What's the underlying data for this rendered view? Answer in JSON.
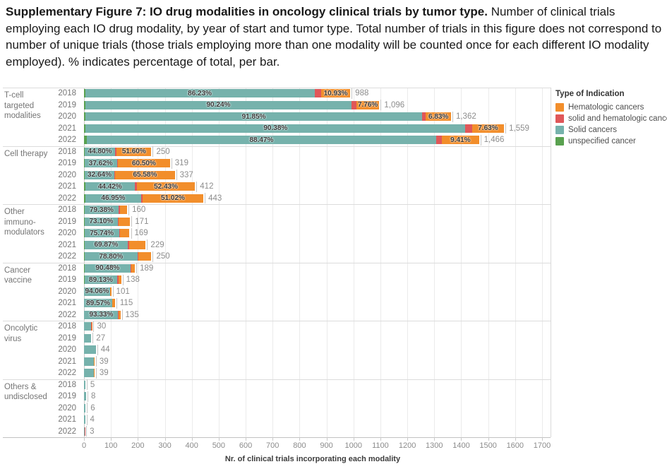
{
  "caption": {
    "bold": "Supplementary Figure 7: IO drug modalities in oncology clinical trials by tumor type.",
    "rest": " Number of clinical trials employing each IO drug modality, by year of start and tumor type. Total number of trials in this figure does not correspond to number of unique trials (those trials employing more than one modality will be counted once for each different IO modality employed). % indicates percentage of total, per bar."
  },
  "legend": {
    "title": "Type of Indication",
    "items": [
      {
        "label": "Hematologic cancers",
        "type": "hematologic",
        "color": "#f28e2b"
      },
      {
        "label": "solid and hematologic cancer",
        "type": "solid_hematologic",
        "color": "#e05759"
      },
      {
        "label": "Solid cancers",
        "type": "solid",
        "color": "#76b2ac"
      },
      {
        "label": "unspecified cancer",
        "type": "unspecified",
        "color": "#59a14f"
      }
    ]
  },
  "chart_data": {
    "type": "bar",
    "orientation": "horizontal",
    "stacked": true,
    "title": "IO drug modalities in oncology clinical trials by tumor type",
    "xlabel": "Nr. of clinical trials incorporating each modality",
    "xlim": [
      0,
      1700
    ],
    "xtick_step": 100,
    "grid": true,
    "legend_position": "right",
    "colors": {
      "hematologic": "#f28e2b",
      "solid_hematologic": "#e05759",
      "solid": "#76b2ac",
      "unspecified": "#59a14f"
    },
    "groups": [
      {
        "label": "T-cell targeted modalities",
        "rows": [
          {
            "year": "2018",
            "total": 988,
            "total_label": "988",
            "segments": [
              {
                "type": "unspecified",
                "pct": 0.4
              },
              {
                "type": "solid",
                "pct": 86.23,
                "label": "86.23%"
              },
              {
                "type": "solid_hematologic",
                "pct": 2.44
              },
              {
                "type": "hematologic",
                "pct": 10.93,
                "label": "10.93%"
              }
            ]
          },
          {
            "year": "2019",
            "total": 1096,
            "total_label": "1,096",
            "segments": [
              {
                "type": "unspecified",
                "pct": 0.4
              },
              {
                "type": "solid",
                "pct": 90.24,
                "label": "90.24%"
              },
              {
                "type": "solid_hematologic",
                "pct": 1.6
              },
              {
                "type": "hematologic",
                "pct": 7.76,
                "label": "7.76%"
              }
            ]
          },
          {
            "year": "2020",
            "total": 1362,
            "total_label": "1,362",
            "segments": [
              {
                "type": "unspecified",
                "pct": 0.35
              },
              {
                "type": "solid",
                "pct": 91.85,
                "label": "91.85%"
              },
              {
                "type": "solid_hematologic",
                "pct": 0.97
              },
              {
                "type": "hematologic",
                "pct": 6.83,
                "label": "6.83%"
              }
            ]
          },
          {
            "year": "2021",
            "total": 1559,
            "total_label": "1,559",
            "segments": [
              {
                "type": "unspecified",
                "pct": 0.4
              },
              {
                "type": "solid",
                "pct": 90.38,
                "label": "90.38%"
              },
              {
                "type": "solid_hematologic",
                "pct": 1.59
              },
              {
                "type": "hematologic",
                "pct": 7.63,
                "label": "7.63%"
              }
            ]
          },
          {
            "year": "2022",
            "total": 1466,
            "total_label": "1,466",
            "segments": [
              {
                "type": "unspecified",
                "pct": 0.7
              },
              {
                "type": "solid",
                "pct": 88.47,
                "label": "88.47%"
              },
              {
                "type": "solid_hematologic",
                "pct": 1.42
              },
              {
                "type": "hematologic",
                "pct": 9.41,
                "label": "9.41%"
              }
            ]
          }
        ]
      },
      {
        "label": "Cell therapy",
        "rows": [
          {
            "year": "2018",
            "total": 250,
            "total_label": "250",
            "segments": [
              {
                "type": "unspecified",
                "pct": 1.2
              },
              {
                "type": "solid",
                "pct": 44.8,
                "label": "44.80%"
              },
              {
                "type": "solid_hematologic",
                "pct": 2.4
              },
              {
                "type": "hematologic",
                "pct": 51.6,
                "label": "51.60%"
              }
            ]
          },
          {
            "year": "2019",
            "total": 319,
            "total_label": "319",
            "segments": [
              {
                "type": "unspecified",
                "pct": 0.7
              },
              {
                "type": "solid",
                "pct": 37.62,
                "label": "37.62%"
              },
              {
                "type": "solid_hematologic",
                "pct": 1.18
              },
              {
                "type": "hematologic",
                "pct": 60.5,
                "label": "60.50%"
              }
            ]
          },
          {
            "year": "2020",
            "total": 337,
            "total_label": "337",
            "segments": [
              {
                "type": "unspecified",
                "pct": 0.8
              },
              {
                "type": "solid",
                "pct": 32.64,
                "label": "32.64%"
              },
              {
                "type": "solid_hematologic",
                "pct": 0.98
              },
              {
                "type": "hematologic",
                "pct": 65.58,
                "label": "65.58%"
              }
            ]
          },
          {
            "year": "2021",
            "total": 412,
            "total_label": "412",
            "segments": [
              {
                "type": "unspecified",
                "pct": 1.2
              },
              {
                "type": "solid",
                "pct": 44.42,
                "label": "44.42%"
              },
              {
                "type": "solid_hematologic",
                "pct": 1.95
              },
              {
                "type": "hematologic",
                "pct": 52.43,
                "label": "52.43%"
              }
            ]
          },
          {
            "year": "2022",
            "total": 443,
            "total_label": "443",
            "segments": [
              {
                "type": "unspecified",
                "pct": 1.0
              },
              {
                "type": "solid",
                "pct": 46.95,
                "label": "46.95%"
              },
              {
                "type": "solid_hematologic",
                "pct": 1.03
              },
              {
                "type": "hematologic",
                "pct": 51.02,
                "label": "51.02%"
              }
            ]
          }
        ]
      },
      {
        "label": "Other immuno-modulators",
        "rows": [
          {
            "year": "2018",
            "total": 160,
            "total_label": "160",
            "segments": [
              {
                "type": "unspecified",
                "pct": 1.2
              },
              {
                "type": "solid",
                "pct": 79.38,
                "label": "79.38%"
              },
              {
                "type": "solid_hematologic",
                "pct": 2.4
              },
              {
                "type": "hematologic",
                "pct": 17.02
              }
            ]
          },
          {
            "year": "2019",
            "total": 171,
            "total_label": "171",
            "segments": [
              {
                "type": "unspecified",
                "pct": 0.9
              },
              {
                "type": "solid",
                "pct": 73.1,
                "label": "73.10%"
              },
              {
                "type": "solid_hematologic",
                "pct": 1.0
              },
              {
                "type": "hematologic",
                "pct": 25.0
              }
            ]
          },
          {
            "year": "2020",
            "total": 169,
            "total_label": "169",
            "segments": [
              {
                "type": "unspecified",
                "pct": 1.2
              },
              {
                "type": "solid",
                "pct": 75.74,
                "label": "75.74%"
              },
              {
                "type": "solid_hematologic",
                "pct": 2.0
              },
              {
                "type": "hematologic",
                "pct": 21.06
              }
            ]
          },
          {
            "year": "2021",
            "total": 229,
            "total_label": "229",
            "segments": [
              {
                "type": "unspecified",
                "pct": 1.0
              },
              {
                "type": "solid",
                "pct": 69.87,
                "label": "69.87%"
              },
              {
                "type": "solid_hematologic",
                "pct": 2.6
              },
              {
                "type": "hematologic",
                "pct": 26.53
              }
            ]
          },
          {
            "year": "2022",
            "total": 250,
            "total_label": "250",
            "segments": [
              {
                "type": "unspecified",
                "pct": 0.8
              },
              {
                "type": "solid",
                "pct": 78.8,
                "label": "78.80%"
              },
              {
                "type": "solid_hematologic",
                "pct": 0.8
              },
              {
                "type": "hematologic",
                "pct": 19.6
              }
            ]
          }
        ]
      },
      {
        "label": "Cancer vaccine",
        "rows": [
          {
            "year": "2018",
            "total": 189,
            "total_label": "189",
            "segments": [
              {
                "type": "unspecified",
                "pct": 1.0
              },
              {
                "type": "solid",
                "pct": 90.48,
                "label": "90.48%"
              },
              {
                "type": "solid_hematologic",
                "pct": 2.0
              },
              {
                "type": "hematologic",
                "pct": 6.52
              }
            ]
          },
          {
            "year": "2019",
            "total": 138,
            "total_label": "138",
            "segments": [
              {
                "type": "unspecified",
                "pct": 1.0
              },
              {
                "type": "solid",
                "pct": 89.13,
                "label": "89.13%"
              },
              {
                "type": "solid_hematologic",
                "pct": 2.5
              },
              {
                "type": "hematologic",
                "pct": 7.37
              }
            ]
          },
          {
            "year": "2020",
            "total": 101,
            "total_label": "101",
            "segments": [
              {
                "type": "unspecified",
                "pct": 1.0
              },
              {
                "type": "solid",
                "pct": 94.06,
                "label": "94.06%"
              },
              {
                "type": "solid_hematologic",
                "pct": 1.5
              },
              {
                "type": "hematologic",
                "pct": 3.44
              }
            ]
          },
          {
            "year": "2021",
            "total": 115,
            "total_label": "115",
            "segments": [
              {
                "type": "unspecified",
                "pct": 1.0
              },
              {
                "type": "solid",
                "pct": 89.57,
                "label": "89.57%"
              },
              {
                "type": "solid_hematologic",
                "pct": 1.5
              },
              {
                "type": "hematologic",
                "pct": 7.93
              }
            ]
          },
          {
            "year": "2022",
            "total": 135,
            "total_label": "135",
            "segments": [
              {
                "type": "unspecified",
                "pct": 0.7
              },
              {
                "type": "solid",
                "pct": 93.33,
                "label": "93.33%"
              },
              {
                "type": "solid_hematologic",
                "pct": 1.5
              },
              {
                "type": "hematologic",
                "pct": 4.47
              }
            ]
          }
        ]
      },
      {
        "label": "Oncolytic virus",
        "rows": [
          {
            "year": "2018",
            "total": 30,
            "total_label": "30",
            "segments": [
              {
                "type": "solid",
                "pct": 90
              },
              {
                "type": "solid_hematologic",
                "pct": 5
              },
              {
                "type": "hematologic",
                "pct": 5
              }
            ]
          },
          {
            "year": "2019",
            "total": 27,
            "total_label": "27",
            "segments": [
              {
                "type": "solid",
                "pct": 100
              }
            ]
          },
          {
            "year": "2020",
            "total": 44,
            "total_label": "44",
            "segments": [
              {
                "type": "solid",
                "pct": 100
              }
            ]
          },
          {
            "year": "2021",
            "total": 39,
            "total_label": "39",
            "segments": [
              {
                "type": "solid",
                "pct": 93
              },
              {
                "type": "solid_hematologic",
                "pct": 4
              },
              {
                "type": "hematologic",
                "pct": 3
              }
            ]
          },
          {
            "year": "2022",
            "total": 39,
            "total_label": "39",
            "segments": [
              {
                "type": "solid",
                "pct": 93
              },
              {
                "type": "solid_hematologic",
                "pct": 3
              },
              {
                "type": "hematologic",
                "pct": 4
              }
            ]
          }
        ]
      },
      {
        "label": "Others & undisclosed",
        "rows": [
          {
            "year": "2018",
            "total": 5,
            "total_label": "5",
            "segments": [
              {
                "type": "solid",
                "pct": 100
              }
            ]
          },
          {
            "year": "2019",
            "total": 8,
            "total_label": "8",
            "segments": [
              {
                "type": "solid",
                "pct": 100
              }
            ]
          },
          {
            "year": "2020",
            "total": 6,
            "total_label": "6",
            "segments": [
              {
                "type": "solid",
                "pct": 100
              }
            ]
          },
          {
            "year": "2021",
            "total": 4,
            "total_label": "4",
            "segments": [
              {
                "type": "solid",
                "pct": 100
              }
            ]
          },
          {
            "year": "2022",
            "total": 3,
            "total_label": "3",
            "segments": [
              {
                "type": "solid",
                "pct": 55
              },
              {
                "type": "solid_hematologic",
                "pct": 45
              }
            ]
          }
        ]
      }
    ]
  }
}
